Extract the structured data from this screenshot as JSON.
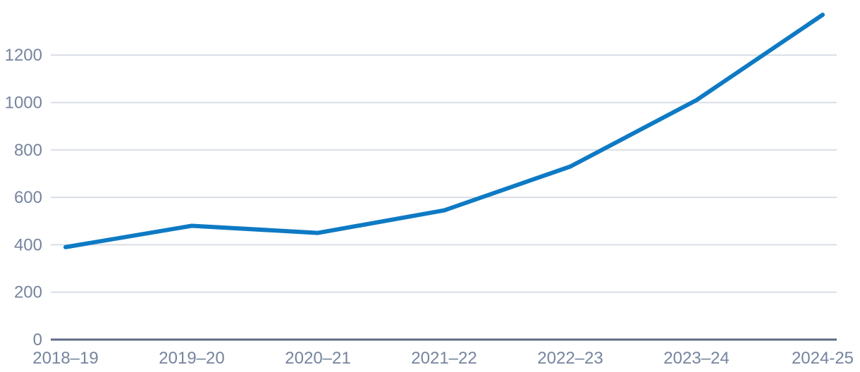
{
  "chart_data": {
    "type": "line",
    "categories": [
      "2018–19",
      "2019–20",
      "2020–21",
      "2021–22",
      "2022–23",
      "2023–24",
      "2024-25"
    ],
    "values": [
      390,
      480,
      450,
      545,
      730,
      1010,
      1370
    ],
    "y_ticks": [
      0,
      200,
      400,
      600,
      800,
      1000,
      1200
    ],
    "ylim": [
      0,
      1400
    ],
    "title": "",
    "xlabel": "",
    "ylabel": "",
    "legend": "none",
    "grid": "horizontal-only",
    "colors": {
      "line": "#0e7ac4",
      "gridline": "#d9dde5",
      "axis_line": "#5d6b85",
      "tick_label": "#76849e",
      "background": "#ffffff"
    }
  }
}
